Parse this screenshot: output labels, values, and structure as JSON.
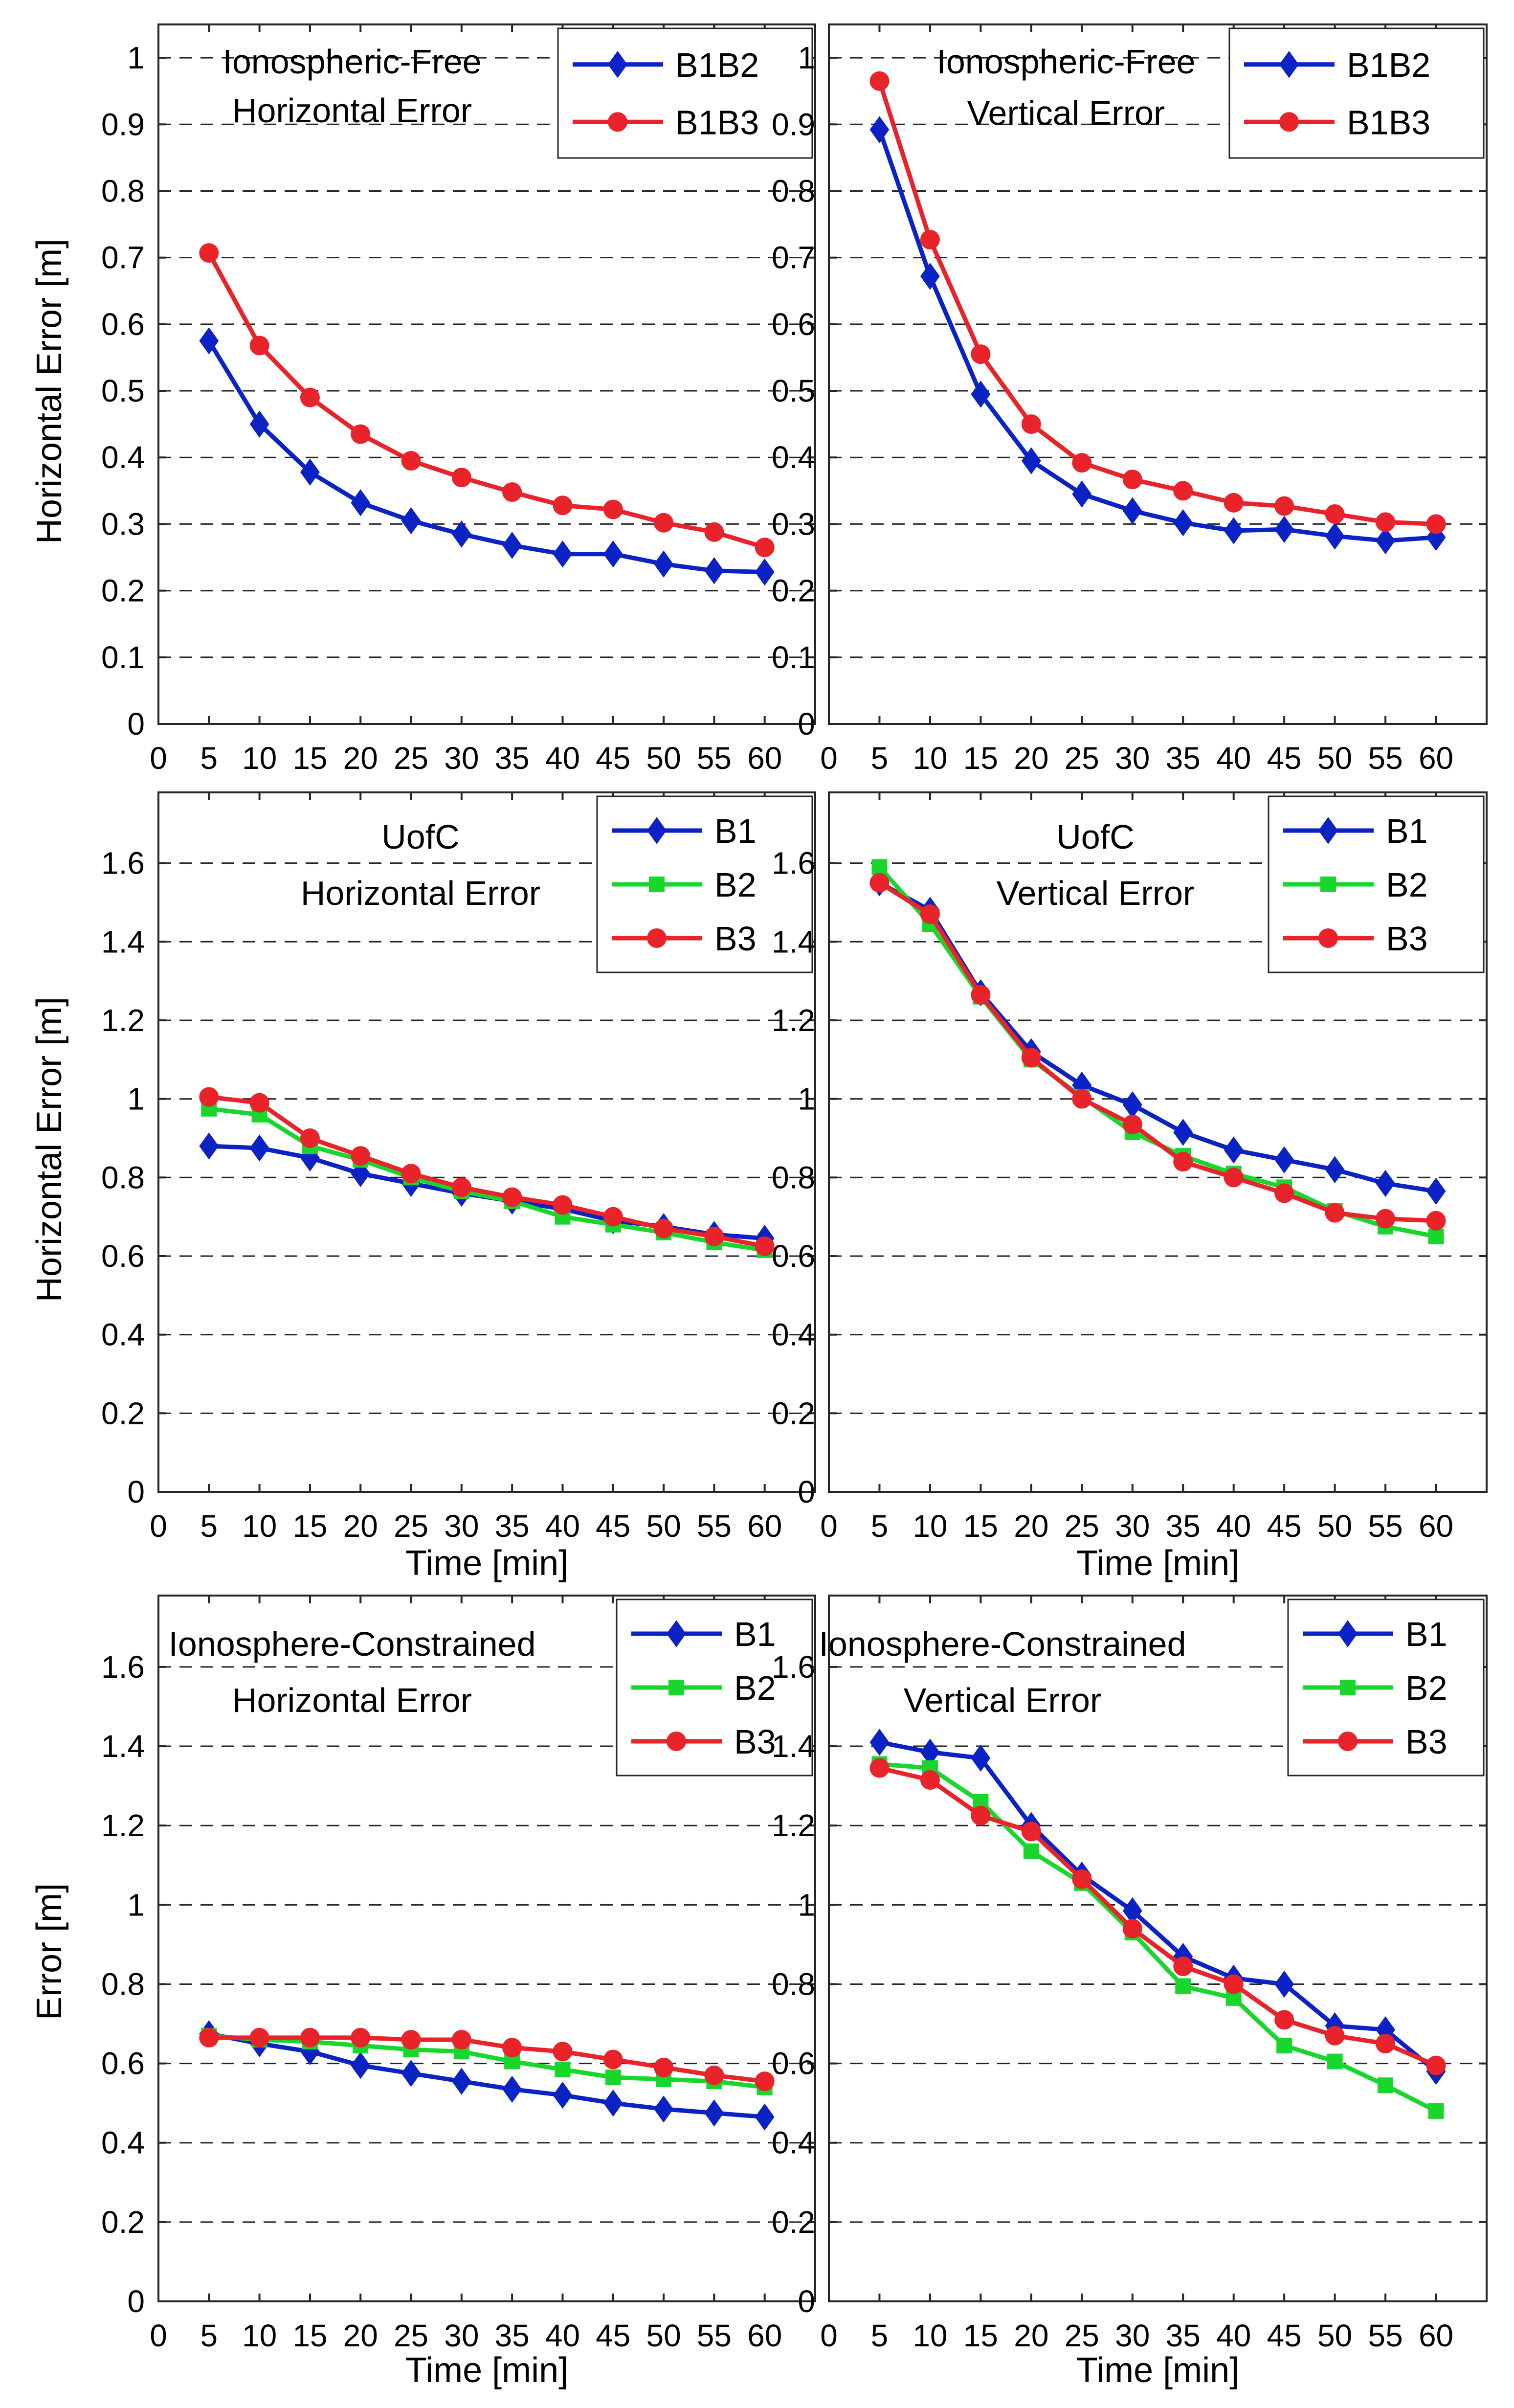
{
  "chart_data": [
    {
      "id": "p1",
      "type": "line",
      "annotation": [
        "Ionospheric-Free",
        "Horizontal Error"
      ],
      "ylabel": "Horizontal Error [m]",
      "xlabel": "",
      "ylim": [
        0,
        1.05
      ],
      "yticks": [
        0,
        0.1,
        0.2,
        0.3,
        0.4,
        0.5,
        0.6,
        0.7,
        0.8,
        0.9,
        1
      ],
      "xlim": [
        0,
        65
      ],
      "xticks": [
        0,
        5,
        10,
        15,
        20,
        25,
        30,
        35,
        40,
        45,
        50,
        55,
        60
      ],
      "x": [
        5,
        10,
        15,
        20,
        25,
        30,
        35,
        40,
        45,
        50,
        55,
        60
      ],
      "series": [
        {
          "name": "B1B2",
          "color": "#0b22c4",
          "marker": "diamond",
          "values": [
            0.575,
            0.45,
            0.378,
            0.332,
            0.305,
            0.285,
            0.268,
            0.255,
            0.255,
            0.24,
            0.23,
            0.228
          ]
        },
        {
          "name": "B1B3",
          "color": "#e8232a",
          "marker": "circle",
          "values": [
            0.707,
            0.568,
            0.49,
            0.435,
            0.395,
            0.37,
            0.348,
            0.328,
            0.322,
            0.302,
            0.288,
            0.265
          ]
        }
      ]
    },
    {
      "id": "p2",
      "type": "line",
      "annotation": [
        "Ionospheric-Free",
        "Vertical Error"
      ],
      "ylabel": "",
      "xlabel": "",
      "ylim": [
        0,
        1.05
      ],
      "yticks": [
        0,
        0.1,
        0.2,
        0.3,
        0.4,
        0.5,
        0.6,
        0.7,
        0.8,
        0.9,
        1
      ],
      "xlim": [
        0,
        65
      ],
      "xticks": [
        0,
        5,
        10,
        15,
        20,
        25,
        30,
        35,
        40,
        45,
        50,
        55,
        60
      ],
      "x": [
        5,
        10,
        15,
        20,
        25,
        30,
        35,
        40,
        45,
        50,
        55,
        60
      ],
      "series": [
        {
          "name": "B1B2",
          "color": "#0b22c4",
          "marker": "diamond",
          "values": [
            0.892,
            0.672,
            0.495,
            0.395,
            0.345,
            0.32,
            0.302,
            0.29,
            0.292,
            0.282,
            0.275,
            0.28
          ]
        },
        {
          "name": "B1B3",
          "color": "#e8232a",
          "marker": "circle",
          "values": [
            0.965,
            0.727,
            0.555,
            0.45,
            0.392,
            0.367,
            0.35,
            0.332,
            0.327,
            0.315,
            0.303,
            0.3
          ]
        }
      ]
    },
    {
      "id": "p3",
      "type": "line",
      "annotation": [
        "UofC",
        "Horizontal Error"
      ],
      "ylabel": "Horizontal Error [m]",
      "xlabel": "Time [min]",
      "ylim": [
        0,
        1.78
      ],
      "yticks": [
        0,
        0.2,
        0.4,
        0.6,
        0.8,
        1,
        1.2,
        1.4,
        1.6
      ],
      "xlim": [
        0,
        65
      ],
      "xticks": [
        0,
        5,
        10,
        15,
        20,
        25,
        30,
        35,
        40,
        45,
        50,
        55,
        60
      ],
      "x": [
        5,
        10,
        15,
        20,
        25,
        30,
        35,
        40,
        45,
        50,
        55,
        60
      ],
      "series": [
        {
          "name": "B1",
          "color": "#0b22c4",
          "marker": "diamond",
          "values": [
            0.88,
            0.875,
            0.85,
            0.81,
            0.785,
            0.76,
            0.74,
            0.72,
            0.69,
            0.675,
            0.655,
            0.645
          ]
        },
        {
          "name": "B2",
          "color": "#18d62c",
          "marker": "square",
          "values": [
            0.975,
            0.96,
            0.88,
            0.845,
            0.8,
            0.765,
            0.74,
            0.7,
            0.68,
            0.66,
            0.635,
            0.615
          ]
        },
        {
          "name": "B3",
          "color": "#e8232a",
          "marker": "circle",
          "values": [
            1.005,
            0.99,
            0.9,
            0.855,
            0.81,
            0.775,
            0.75,
            0.73,
            0.7,
            0.67,
            0.65,
            0.625
          ]
        }
      ]
    },
    {
      "id": "p4",
      "type": "line",
      "annotation": [
        "UofC",
        "Vertical Error"
      ],
      "ylabel": "",
      "xlabel": "Time [min]",
      "ylim": [
        0,
        1.78
      ],
      "yticks": [
        0,
        0.2,
        0.4,
        0.6,
        0.8,
        1,
        1.2,
        1.4,
        1.6
      ],
      "xlim": [
        0,
        65
      ],
      "xticks": [
        0,
        5,
        10,
        15,
        20,
        25,
        30,
        35,
        40,
        45,
        50,
        55,
        60
      ],
      "x": [
        5,
        10,
        15,
        20,
        25,
        30,
        35,
        40,
        45,
        50,
        55,
        60
      ],
      "series": [
        {
          "name": "B1",
          "color": "#0b22c4",
          "marker": "diamond",
          "values": [
            1.55,
            1.48,
            1.27,
            1.12,
            1.035,
            0.985,
            0.915,
            0.87,
            0.845,
            0.82,
            0.785,
            0.765
          ]
        },
        {
          "name": "B2",
          "color": "#18d62c",
          "marker": "square",
          "values": [
            1.59,
            1.445,
            1.26,
            1.1,
            1.005,
            0.915,
            0.855,
            0.81,
            0.775,
            0.715,
            0.675,
            0.65
          ]
        },
        {
          "name": "B3",
          "color": "#e8232a",
          "marker": "circle",
          "values": [
            1.55,
            1.47,
            1.265,
            1.105,
            1.0,
            0.935,
            0.84,
            0.8,
            0.76,
            0.71,
            0.695,
            0.69
          ]
        }
      ]
    },
    {
      "id": "p5",
      "type": "line",
      "annotation": [
        "Ionosphere-Constrained",
        "Horizontal Error"
      ],
      "ylabel": "Error [m]",
      "xlabel": "Time [min]",
      "ylim": [
        0,
        1.78
      ],
      "yticks": [
        0,
        0.2,
        0.4,
        0.6,
        0.8,
        1,
        1.2,
        1.4,
        1.6
      ],
      "xlim": [
        0,
        65
      ],
      "xticks": [
        0,
        5,
        10,
        15,
        20,
        25,
        30,
        35,
        40,
        45,
        50,
        55,
        60
      ],
      "x": [
        5,
        10,
        15,
        20,
        25,
        30,
        35,
        40,
        45,
        50,
        55,
        60
      ],
      "series": [
        {
          "name": "B1",
          "color": "#0b22c4",
          "marker": "diamond",
          "values": [
            0.675,
            0.65,
            0.63,
            0.595,
            0.575,
            0.555,
            0.535,
            0.52,
            0.5,
            0.485,
            0.475,
            0.465
          ]
        },
        {
          "name": "B2",
          "color": "#18d62c",
          "marker": "square",
          "values": [
            0.67,
            0.66,
            0.655,
            0.645,
            0.635,
            0.63,
            0.605,
            0.585,
            0.565,
            0.56,
            0.555,
            0.54
          ]
        },
        {
          "name": "B3",
          "color": "#e8232a",
          "marker": "circle",
          "values": [
            0.665,
            0.665,
            0.665,
            0.665,
            0.66,
            0.66,
            0.64,
            0.63,
            0.61,
            0.59,
            0.57,
            0.555
          ]
        }
      ]
    },
    {
      "id": "p6",
      "type": "line",
      "annotation": [
        "Ionosphere-Constrained",
        "Vertical Error"
      ],
      "ylabel": "",
      "xlabel": "Time [min]",
      "ylim": [
        0,
        1.78
      ],
      "yticks": [
        0,
        0.2,
        0.4,
        0.6,
        0.8,
        1,
        1.2,
        1.4,
        1.6
      ],
      "xlim": [
        0,
        65
      ],
      "xticks": [
        0,
        5,
        10,
        15,
        20,
        25,
        30,
        35,
        40,
        45,
        50,
        55,
        60
      ],
      "x": [
        5,
        10,
        15,
        20,
        25,
        30,
        35,
        40,
        45,
        50,
        55,
        60
      ],
      "series": [
        {
          "name": "B1",
          "color": "#0b22c4",
          "marker": "diamond",
          "values": [
            1.41,
            1.385,
            1.37,
            1.2,
            1.075,
            0.985,
            0.87,
            0.815,
            0.8,
            0.695,
            0.685,
            0.58
          ]
        },
        {
          "name": "B2",
          "color": "#18d62c",
          "marker": "square",
          "values": [
            1.355,
            1.345,
            1.26,
            1.135,
            1.055,
            0.93,
            0.795,
            0.765,
            0.645,
            0.605,
            0.545,
            0.48
          ]
        },
        {
          "name": "B3",
          "color": "#e8232a",
          "marker": "circle",
          "values": [
            1.345,
            1.315,
            1.225,
            1.185,
            1.065,
            0.94,
            0.845,
            0.8,
            0.71,
            0.67,
            0.65,
            0.595
          ]
        }
      ]
    }
  ]
}
